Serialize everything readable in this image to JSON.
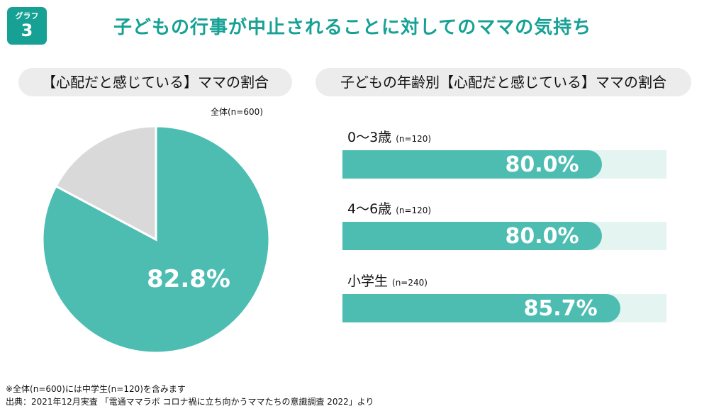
{
  "badge": {
    "label": "グラフ",
    "number": "3"
  },
  "title": "子どもの行事が中止されることに対してのママの気持ち",
  "left": {
    "heading": "【心配だと感じている】ママの割合",
    "note": "全体(n=600)"
  },
  "right": {
    "heading": "子どもの年齢別【心配だと感じている】ママの割合"
  },
  "colors": {
    "accent": "#17a195",
    "bar": "#4dbdb2",
    "track": "#e3f4f1",
    "pie_rest": "#d9d9d9"
  },
  "chart_data": [
    {
      "type": "pie",
      "values": [
        82.8,
        17.2
      ],
      "labels": [
        "82.8%",
        ""
      ],
      "colors": [
        "#4dbdb2",
        "#d9d9d9"
      ]
    },
    {
      "type": "bar",
      "orientation": "horizontal",
      "xlim": [
        0,
        100
      ],
      "categories": [
        {
          "name": "0〜3歳",
          "n": "(n=120)"
        },
        {
          "name": "4〜6歳",
          "n": "(n=120)"
        },
        {
          "name": "小学生",
          "n": "(n=240)"
        }
      ],
      "values": [
        80.0,
        80.0,
        85.7
      ],
      "labels": [
        "80.0%",
        "80.0%",
        "85.7%"
      ]
    }
  ],
  "footnotes": [
    "※全体(n=600)には中学生(n=120)を含みます",
    "出典：2021年12月実査 「電通ママラボ コロナ禍に立ち向かうママたちの意識調査 2022」より"
  ]
}
